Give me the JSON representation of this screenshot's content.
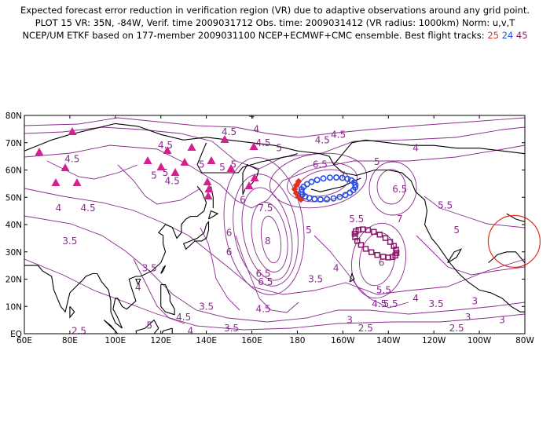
{
  "header": {
    "line1": "Expected forecast error reduction in verification region (VR) due to adaptive observations around any grid point.",
    "line2": "PLOT 15 VR: 35N, -84W, Verif. time 2009031712 Obs. time: 2009031412 (VR radius: 1000km) Norm: u,v,T",
    "line3_prefix": "NCEP/UM ETKF based on 177-member 2009031100 NCEP+ECMWF+CMC ensemble. Best flight tracks: ",
    "track_a": "25",
    "track_b": "24",
    "track_c": "45"
  },
  "colors": {
    "contour": "#8a2a8e",
    "track_25": "#e0301e",
    "track_24": "#2a4ee0",
    "track_45": "#8c1a6a",
    "triangles": "#d6208f",
    "vr_circle": "#e0301e",
    "coast": "#000000"
  },
  "map": {
    "lat_labels": [
      "80N",
      "70N",
      "60N",
      "50N",
      "40N",
      "30N",
      "20N",
      "10N",
      "EQ"
    ],
    "lon_labels": [
      "60E",
      "80E",
      "100E",
      "120E",
      "140E",
      "160E",
      "180",
      "160W",
      "140W",
      "120W",
      "100W",
      "80W"
    ],
    "vr_center": {
      "lat": 35,
      "lon": -84
    }
  },
  "contour_labels": [
    {
      "text": "4.5",
      "lat": 74,
      "lon": 150
    },
    {
      "text": "4.5",
      "lat": 69,
      "lon": 122
    },
    {
      "text": "4",
      "lat": 75,
      "lon": 162
    },
    {
      "text": "4.5",
      "lat": 70,
      "lon": 165
    },
    {
      "text": "5",
      "lat": 68,
      "lon": 172
    },
    {
      "text": "4.5",
      "lat": 71,
      "lon": 191
    },
    {
      "text": "4.5",
      "lat": 73,
      "lon": 198
    },
    {
      "text": "4",
      "lat": 68,
      "lon": 232
    },
    {
      "text": "4.5",
      "lat": 64,
      "lon": 81
    },
    {
      "text": "5",
      "lat": 58,
      "lon": 117
    },
    {
      "text": "5",
      "lat": 59,
      "lon": 122
    },
    {
      "text": "5",
      "lat": 62,
      "lon": 138
    },
    {
      "text": "5",
      "lat": 61,
      "lon": 147
    },
    {
      "text": "5",
      "lat": 62,
      "lon": 152
    },
    {
      "text": "4.5",
      "lat": 56,
      "lon": 125
    },
    {
      "text": "6.5",
      "lat": 62,
      "lon": 190
    },
    {
      "text": "7",
      "lat": 58,
      "lon": 200
    },
    {
      "text": "5",
      "lat": 63,
      "lon": 215
    },
    {
      "text": "6.5",
      "lat": 53,
      "lon": 225
    },
    {
      "text": "5.5",
      "lat": 47,
      "lon": 245
    },
    {
      "text": "6",
      "lat": 49,
      "lon": 156
    },
    {
      "text": "7.5",
      "lat": 46,
      "lon": 166
    },
    {
      "text": "8",
      "lat": 34,
      "lon": 167
    },
    {
      "text": "5",
      "lat": 38,
      "lon": 185
    },
    {
      "text": "5.5",
      "lat": 42,
      "lon": 206
    },
    {
      "text": "7",
      "lat": 42,
      "lon": 225
    },
    {
      "text": "5",
      "lat": 38,
      "lon": 250
    },
    {
      "text": "6",
      "lat": 37,
      "lon": 150
    },
    {
      "text": "6",
      "lat": 30,
      "lon": 150
    },
    {
      "text": "4",
      "lat": 80,
      "lon": 160
    },
    {
      "text": "4",
      "lat": 46,
      "lon": 75
    },
    {
      "text": "4.5",
      "lat": 46,
      "lon": 88
    },
    {
      "text": "3.5",
      "lat": 34,
      "lon": 80
    },
    {
      "text": "3.5",
      "lat": 24,
      "lon": 115
    },
    {
      "text": "4",
      "lat": 17,
      "lon": 110
    },
    {
      "text": "6.5",
      "lat": 22,
      "lon": 165
    },
    {
      "text": "6.5",
      "lat": 19,
      "lon": 166
    },
    {
      "text": "4",
      "lat": 24,
      "lon": 197
    },
    {
      "text": "3.5",
      "lat": 20,
      "lon": 188
    },
    {
      "text": "5.5",
      "lat": 16,
      "lon": 218
    },
    {
      "text": "5.5",
      "lat": 11,
      "lon": 221
    },
    {
      "text": "4.5",
      "lat": 11,
      "lon": 216
    },
    {
      "text": "6",
      "lat": 26,
      "lon": 217
    },
    {
      "text": "4",
      "lat": 13,
      "lon": 232
    },
    {
      "text": "3",
      "lat": 12,
      "lon": 258
    },
    {
      "text": "3.5",
      "lat": 10,
      "lon": 140
    },
    {
      "text": "4.5",
      "lat": 9,
      "lon": 165
    },
    {
      "text": "4.5",
      "lat": 6,
      "lon": 130
    },
    {
      "text": "3",
      "lat": 5,
      "lon": 203
    },
    {
      "text": "2.5",
      "lat": 2,
      "lon": 210
    },
    {
      "text": "2.5",
      "lat": 2,
      "lon": 250
    },
    {
      "text": "3.5",
      "lat": 2,
      "lon": 151
    },
    {
      "text": "5",
      "lat": 3,
      "lon": 115
    },
    {
      "text": "4",
      "lat": 1,
      "lon": 133
    },
    {
      "text": "2.5",
      "lat": 1,
      "lon": 84
    },
    {
      "text": "3",
      "lat": 6,
      "lon": 255
    },
    {
      "text": "3",
      "lat": 5,
      "lon": 270
    },
    {
      "text": "3.5",
      "lat": 11,
      "lon": 241
    }
  ]
}
